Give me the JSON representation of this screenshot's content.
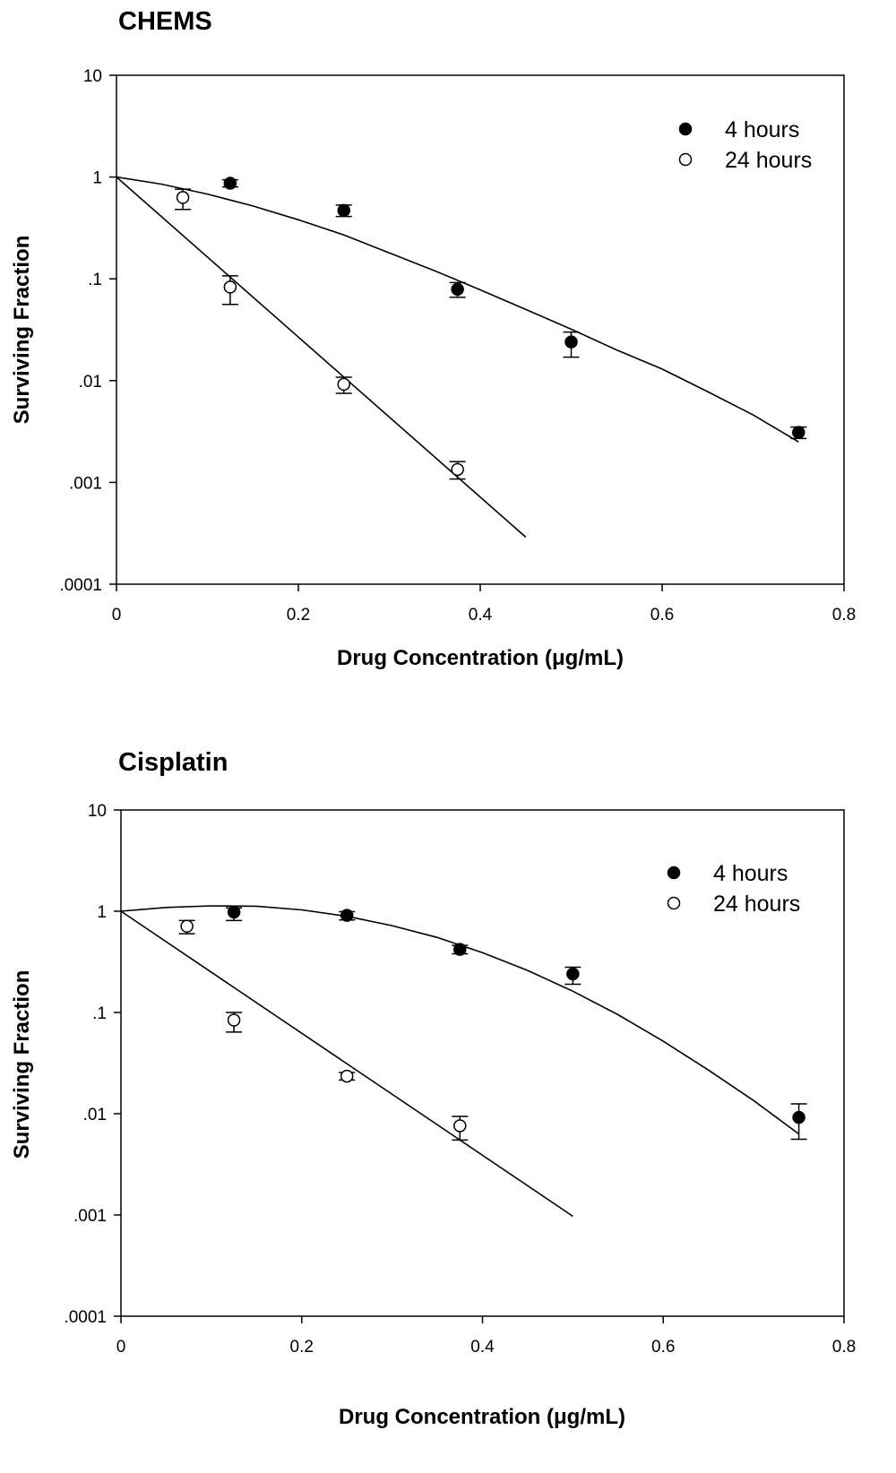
{
  "chart_data": [
    {
      "type": "scatter",
      "title": "CHEMS",
      "xlabel": "Drug Concentration (μg/mL)",
      "ylabel": "Surviving Fraction",
      "xlim": [
        0,
        0.8
      ],
      "ylim": [
        0.0001,
        10
      ],
      "y_scale": "log",
      "x_ticks": [
        0,
        0.2,
        0.4,
        0.6,
        0.8
      ],
      "x_tick_labels": [
        "0",
        "0.2",
        "0.4",
        "0.6",
        "0.8"
      ],
      "y_ticks": [
        0.0001,
        0.001,
        0.01,
        0.1,
        1,
        10
      ],
      "y_tick_labels": [
        ".0001",
        ".001",
        ".01",
        ".1",
        "1",
        "10"
      ],
      "grid": false,
      "legend_position": "top-right",
      "series": [
        {
          "name": "4 hours",
          "marker": "filled-circle",
          "x": [
            0.125,
            0.25,
            0.375,
            0.5,
            0.75
          ],
          "y": [
            0.87,
            0.47,
            0.079,
            0.024,
            0.0031
          ],
          "err_low": [
            0.8,
            0.41,
            0.066,
            0.017,
            0.0027
          ],
          "err_high": [
            0.94,
            0.53,
            0.092,
            0.03,
            0.0035
          ],
          "fit_x": [
            0,
            0.05,
            0.1,
            0.15,
            0.2,
            0.25,
            0.3,
            0.35,
            0.4,
            0.45,
            0.5,
            0.55,
            0.6,
            0.65,
            0.7,
            0.75
          ],
          "fit_y": [
            1.0,
            0.85,
            0.68,
            0.52,
            0.38,
            0.27,
            0.18,
            0.12,
            0.078,
            0.05,
            0.032,
            0.02,
            0.013,
            0.0078,
            0.0046,
            0.0025
          ]
        },
        {
          "name": "24 hours",
          "marker": "open-circle",
          "x": [
            0.073,
            0.125,
            0.25,
            0.375
          ],
          "y": [
            0.63,
            0.083,
            0.0092,
            0.00134
          ],
          "err_low": [
            0.48,
            0.056,
            0.0075,
            0.00108
          ],
          "err_high": [
            0.76,
            0.107,
            0.0108,
            0.0016
          ],
          "fit_x": [
            0,
            0.45
          ],
          "fit_y": [
            1.0,
            0.00029
          ]
        }
      ]
    },
    {
      "type": "scatter",
      "title": "Cisplatin",
      "xlabel": "Drug Concentration (μg/mL)",
      "ylabel": "Surviving Fraction",
      "xlim": [
        0,
        0.8
      ],
      "ylim": [
        0.0001,
        10
      ],
      "y_scale": "log",
      "x_ticks": [
        0,
        0.2,
        0.4,
        0.6,
        0.8
      ],
      "x_tick_labels": [
        "0",
        "0.2",
        "0.4",
        "0.6",
        "0.8"
      ],
      "y_ticks": [
        0.0001,
        0.001,
        0.01,
        0.1,
        1,
        10
      ],
      "y_tick_labels": [
        ".0001",
        ".001",
        ".01",
        ".1",
        "1",
        "10"
      ],
      "grid": false,
      "legend_position": "top-right",
      "series": [
        {
          "name": "4 hours",
          "marker": "filled-circle",
          "x": [
            0.125,
            0.25,
            0.375,
            0.5,
            0.75
          ],
          "y": [
            0.98,
            0.91,
            0.42,
            0.24,
            0.0092
          ],
          "err_low": [
            0.81,
            0.82,
            0.38,
            0.19,
            0.0056
          ],
          "err_high": [
            1.08,
            0.99,
            0.46,
            0.28,
            0.0125
          ],
          "fit_x": [
            0,
            0.05,
            0.1,
            0.15,
            0.2,
            0.25,
            0.3,
            0.35,
            0.4,
            0.45,
            0.5,
            0.55,
            0.6,
            0.65,
            0.7,
            0.75
          ],
          "fit_y": [
            1.0,
            1.09,
            1.13,
            1.12,
            1.03,
            0.89,
            0.72,
            0.55,
            0.39,
            0.26,
            0.162,
            0.095,
            0.052,
            0.027,
            0.0135,
            0.0063
          ]
        },
        {
          "name": "24 hours",
          "marker": "open-circle",
          "x": [
            0.073,
            0.125,
            0.25,
            0.375
          ],
          "y": [
            0.71,
            0.084,
            0.0235,
            0.0076
          ],
          "err_low": [
            0.6,
            0.064,
            0.0215,
            0.0055
          ],
          "err_high": [
            0.81,
            0.1,
            0.0255,
            0.0094
          ],
          "fit_x": [
            0,
            0.5
          ],
          "fit_y": [
            1.0,
            0.00097
          ]
        }
      ]
    }
  ]
}
